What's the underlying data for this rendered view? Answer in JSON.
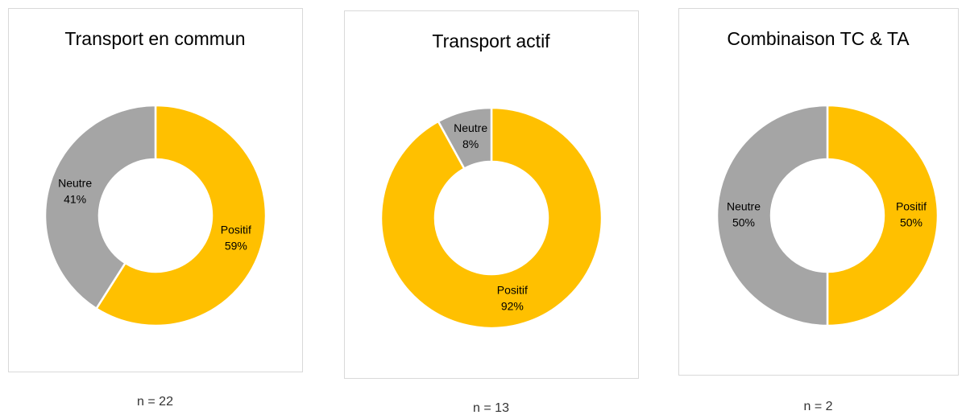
{
  "chart_data": [
    {
      "type": "pie",
      "title": "Transport en commun",
      "categories": [
        "Positif",
        "Neutre"
      ],
      "values": [
        59,
        41
      ],
      "value_labels": [
        "59%",
        "41%"
      ],
      "colors": [
        "#ffc000",
        "#a5a5a5"
      ],
      "note": "n = 22"
    },
    {
      "type": "pie",
      "title": "Transport actif",
      "categories": [
        "Positif",
        "Neutre"
      ],
      "values": [
        92,
        8
      ],
      "value_labels": [
        "92%",
        "8%"
      ],
      "colors": [
        "#ffc000",
        "#a5a5a5"
      ],
      "note": "n = 13"
    },
    {
      "type": "pie",
      "title": "Combinaison TC & TA",
      "categories": [
        "Positif",
        "Neutre"
      ],
      "values": [
        50,
        50
      ],
      "value_labels": [
        "50%",
        "50%"
      ],
      "colors": [
        "#ffc000",
        "#a5a5a5"
      ],
      "note": "n = 2"
    }
  ]
}
